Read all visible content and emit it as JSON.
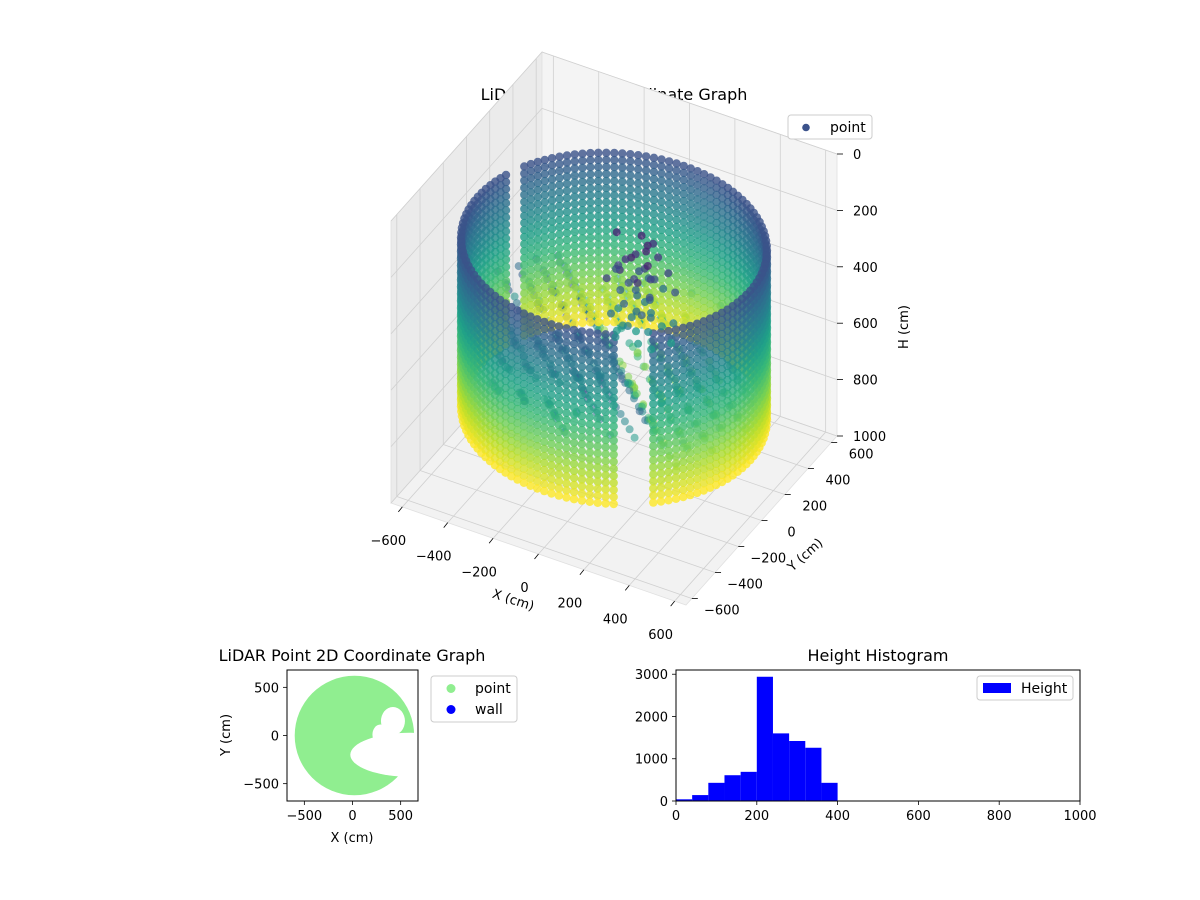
{
  "chart_data": [
    {
      "type": "scatter3d",
      "title": "LiDAR Point 3D Coordinate Graph",
      "xlabel": "X (cm)",
      "ylabel": "Y (cm)",
      "zlabel": "H (cm)",
      "xticks": [
        -600,
        -400,
        -200,
        0,
        200,
        400,
        600
      ],
      "yticks": [
        -600,
        -400,
        -200,
        0,
        200,
        400,
        600
      ],
      "zticks": [
        0,
        200,
        400,
        600,
        800,
        1000
      ],
      "xlim": [
        -650,
        650
      ],
      "ylim": [
        -650,
        650
      ],
      "zlim": [
        0,
        1000
      ],
      "zinverted": true,
      "colormap": "viridis",
      "legend": [
        "point"
      ],
      "legend_color": "#3b528b",
      "legend_position": "top-right",
      "wall_radius_cm": 600,
      "wall_height_cm": [
        200,
        800
      ],
      "hole_center_cm": [
        200,
        200
      ]
    },
    {
      "type": "scatter",
      "title": "LiDAR Point 2D Coordinate Graph",
      "xlabel": "X (cm)",
      "ylabel": "Y (cm)",
      "xticks": [
        -500,
        0,
        500
      ],
      "yticks": [
        -500,
        0,
        500
      ],
      "xlim": [
        -680,
        680
      ],
      "ylim": [
        -680,
        680
      ],
      "series": [
        {
          "name": "point",
          "color": "#90ee90",
          "region_radius_cm": 620
        },
        {
          "name": "wall",
          "color": "#0000ff"
        }
      ],
      "legend_position": "outside-right"
    },
    {
      "type": "bar",
      "title": "Height Histogram",
      "xlabel": "",
      "ylabel": "",
      "bin_width": 40,
      "bins": [
        0,
        40,
        80,
        120,
        160,
        200,
        240,
        280,
        320,
        360,
        400
      ],
      "values": [
        40,
        140,
        430,
        610,
        690,
        2940,
        1600,
        1420,
        1260,
        430,
        0
      ],
      "xlim": [
        0,
        1000
      ],
      "ylim": [
        0,
        3100
      ],
      "xticks": [
        0,
        200,
        400,
        600,
        800,
        1000
      ],
      "yticks": [
        0,
        1000,
        2000,
        3000
      ],
      "color": "#0000ff",
      "legend": [
        "Height"
      ],
      "legend_position": "top-right"
    }
  ]
}
